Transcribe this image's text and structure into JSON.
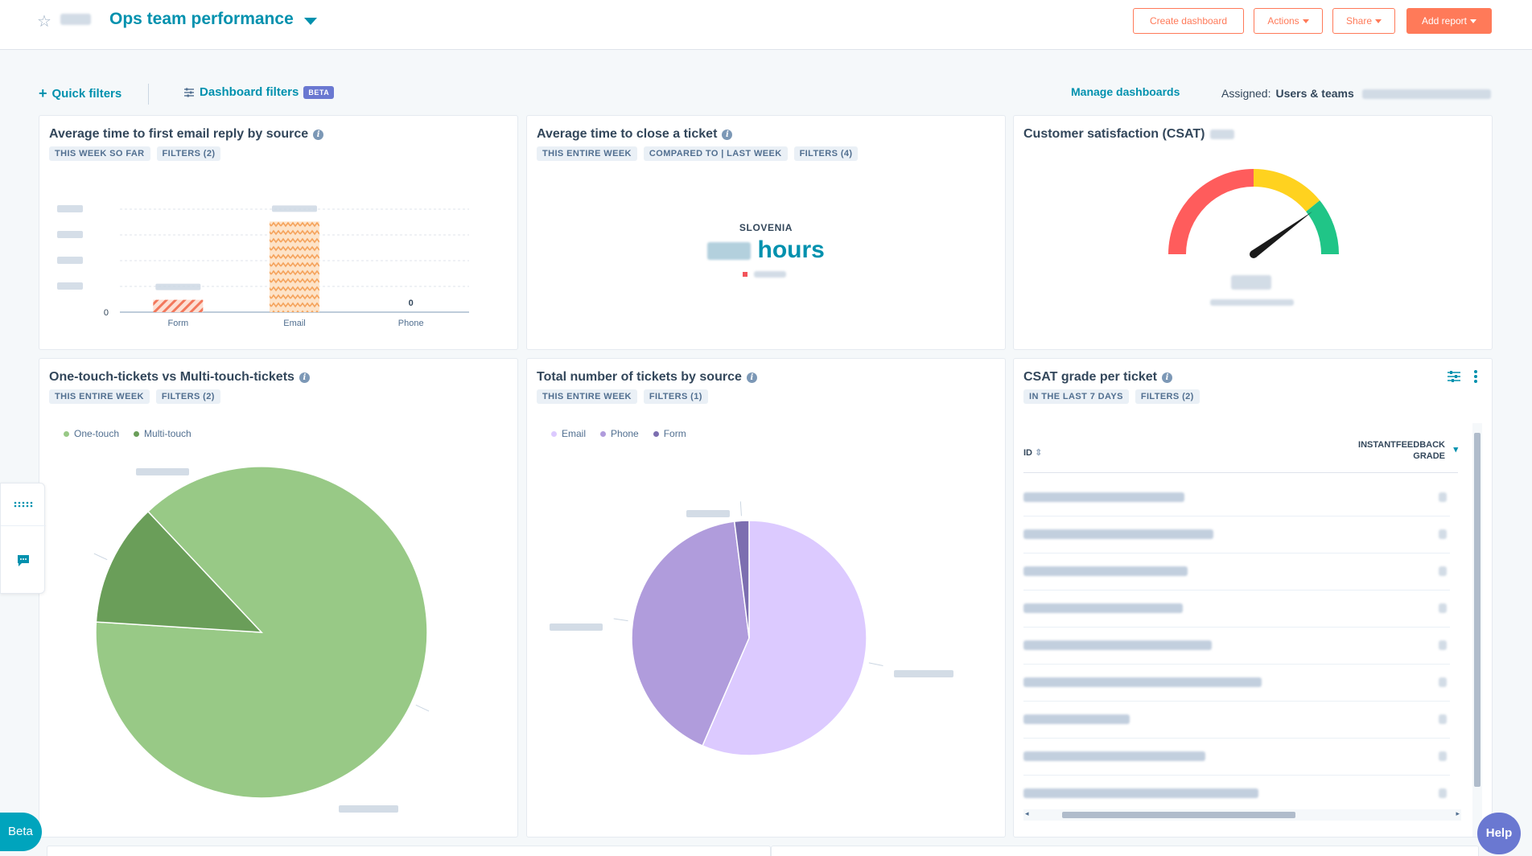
{
  "header": {
    "dashboard_title": "Ops team performance",
    "create_dashboard_label": "Create dashboard",
    "actions_label": "Actions",
    "share_label": "Share",
    "add_report_label": "Add report"
  },
  "filters_bar": {
    "quick_filters_label": "Quick filters",
    "dashboard_filters_label": "Dashboard filters",
    "beta_badge": "BETA",
    "manage_dashboards_label": "Manage dashboards",
    "assigned_label": "Assigned:",
    "assigned_value": "Users & teams"
  },
  "cards": {
    "email_reply": {
      "title": "Average time to first email reply by source",
      "tags": [
        "THIS WEEK SO FAR",
        "FILTERS (2)"
      ]
    },
    "close_ticket": {
      "title": "Average time to close a ticket",
      "tags": [
        "THIS ENTIRE WEEK",
        "COMPARED TO | LAST WEEK",
        "FILTERS (4)"
      ],
      "region": "SLOVENIA",
      "unit": "hours"
    },
    "csat": {
      "title": "Customer satisfaction (CSAT)"
    },
    "touch_tickets": {
      "title": "One-touch-tickets vs Multi-touch-tickets",
      "tags": [
        "THIS ENTIRE WEEK",
        "FILTERS (2)"
      ]
    },
    "tickets_source": {
      "title": "Total number of tickets by source",
      "tags": [
        "THIS ENTIRE WEEK",
        "FILTERS (1)"
      ]
    },
    "csat_grade": {
      "title": "CSAT grade per ticket",
      "tags": [
        "IN THE LAST 7 DAYS",
        "FILTERS (2)"
      ],
      "col_id": "ID",
      "col_grade_1": "INSTANTFEEDBACK",
      "col_grade_2": "GRADE"
    }
  },
  "chart_data": [
    {
      "type": "bar",
      "categories": [
        "Form",
        "Email",
        "Phone"
      ],
      "values": [
        0.12,
        0.88,
        0
      ],
      "data_labels": [
        "",
        "",
        "0"
      ],
      "ylim": [
        0,
        1
      ],
      "y_tick_labels": [
        "0"
      ],
      "grid": true
    },
    {
      "type": "pie",
      "labels": [
        "One-touch",
        "Multi-touch"
      ],
      "values": [
        88,
        12
      ],
      "colors": [
        "#98c986",
        "#6a9e59"
      ]
    },
    {
      "type": "pie",
      "labels": [
        "Email",
        "Phone",
        "Form"
      ],
      "values": [
        56.5,
        41.5,
        2
      ],
      "colors": [
        "#dccaff",
        "#b09cdc",
        "#7c6eb0"
      ]
    }
  ],
  "gauge": {
    "segments": [
      "#ff5c5c",
      "#ffd21f",
      "#20c587"
    ],
    "needle_fraction": 0.8
  },
  "side_panel": {
    "beta_label": "Beta"
  },
  "help_label": "Help",
  "colors": {
    "accent": "#0091ae",
    "brand": "#ff7a59",
    "beta": "#6a78d1"
  }
}
